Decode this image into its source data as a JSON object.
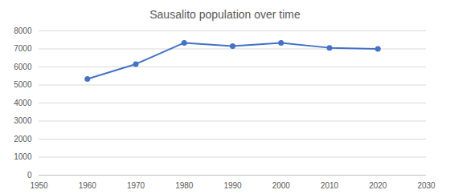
{
  "chart_data": {
    "type": "line",
    "title": "Sausalito population over time",
    "x": [
      1960,
      1970,
      1980,
      1990,
      2000,
      2010,
      2020
    ],
    "values": [
      5331,
      6158,
      7338,
      7152,
      7330,
      7061,
      7000
    ],
    "color": "#4472c4",
    "marker": "circle",
    "xlim": [
      1950,
      2030
    ],
    "xticks": [
      1950,
      1960,
      1970,
      1980,
      1990,
      2000,
      2010,
      2020,
      2030
    ],
    "ylim": [
      0,
      8000
    ],
    "yticks": [
      0,
      1000,
      2000,
      3000,
      4000,
      5000,
      6000,
      7000,
      8000
    ],
    "grid": true
  }
}
